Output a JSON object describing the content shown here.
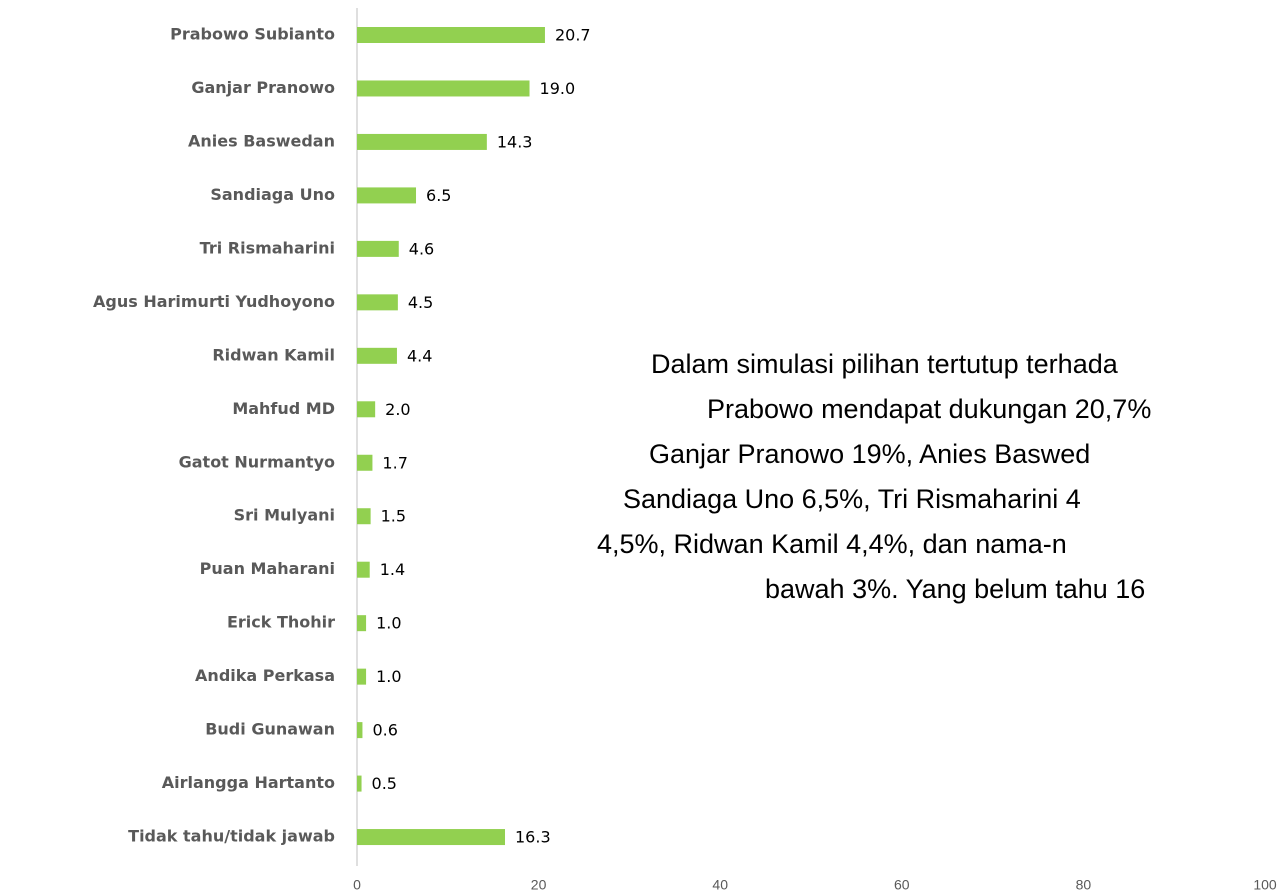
{
  "chart_data": {
    "type": "bar",
    "orientation": "horizontal",
    "categories": [
      "Prabowo Subianto",
      "Ganjar Pranowo",
      "Anies Baswedan",
      "Sandiaga Uno",
      "Tri Rismaharini",
      "Agus Harimurti Yudhoyono",
      "Ridwan Kamil",
      "Mahfud MD",
      "Gatot Nurmantyo",
      "Sri Mulyani",
      "Puan Maharani",
      "Erick Thohir",
      "Andika Perkasa",
      "Budi Gunawan",
      "Airlangga Hartanto",
      "Tidak tahu/tidak jawab"
    ],
    "values": [
      20.7,
      19.0,
      14.3,
      6.5,
      4.6,
      4.5,
      4.4,
      2.0,
      1.7,
      1.5,
      1.4,
      1.0,
      1.0,
      0.6,
      0.5,
      16.3
    ],
    "value_labels": [
      "20.7",
      "19.0",
      "14.3",
      "6.5",
      "4.6",
      "4.5",
      "4.4",
      "2.0",
      "1.7",
      "1.5",
      "1.4",
      "1.0",
      "1.0",
      "0.6",
      "0.5",
      "16.3"
    ],
    "color": "#92d050",
    "xlim": [
      0,
      100
    ],
    "xticks": [
      0,
      20,
      40,
      60,
      80,
      100
    ],
    "grid": false,
    "annotation": [
      "Dalam simulasi pilihan tertutup terhada",
      "Prabowo mendapat dukungan 20,7%",
      "Ganjar Pranowo 19%, Anies Baswed",
      "Sandiaga Uno 6,5%, Tri Rismaharini 4",
      "4,5%, Ridwan Kamil 4,4%, dan nama-n",
      "bawah 3%. Yang belum tahu 16"
    ]
  }
}
